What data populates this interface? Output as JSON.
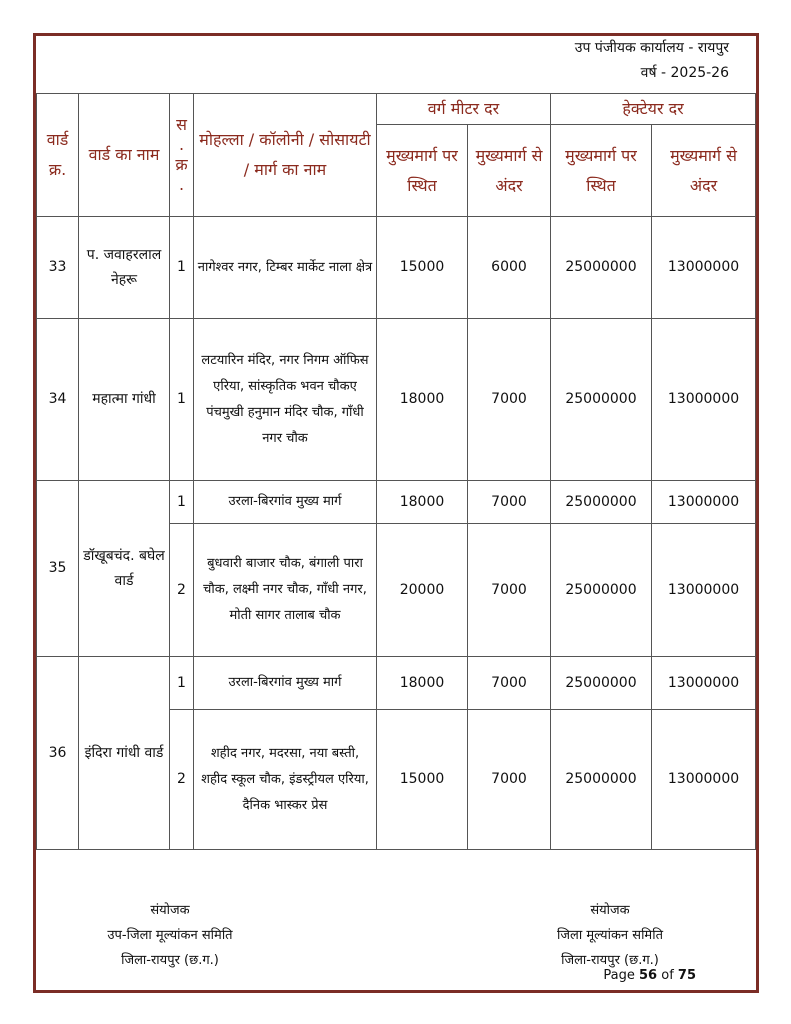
{
  "header": {
    "office": "उप पंजीयक कार्यालय - रायपुर",
    "year": "वर्ष - 2025-26"
  },
  "table": {
    "columns": {
      "ward_no": "वार्ड क्र.",
      "ward_name": "वार्ड का नाम",
      "serial": "स . क्र .",
      "locality": "मोहल्ला / कॉलोनी / सोसायटी / मार्ग का नाम",
      "sqm_rate": "वर्ग मीटर दर",
      "hectare_rate": "हेक्टेयर दर",
      "on_main_road": "मुख्यमार्ग पर स्थित",
      "inside_main_road": "मुख्यमार्ग से अंदर"
    },
    "wards": [
      {
        "no": "33",
        "name": "प. जवाहरलाल नेहरू",
        "rows": [
          {
            "sn": "1",
            "locality": "नागेश्वर नगर, टिम्बर मार्केट नाला क्षेत्र",
            "sqm_on": "15000",
            "sqm_in": "6000",
            "ha_on": "25000000",
            "ha_in": "13000000"
          }
        ]
      },
      {
        "no": "34",
        "name": "महात्मा गांधी",
        "rows": [
          {
            "sn": "1",
            "locality": "लटयारिन मंदिर, नगर निगम ऑफिस एरिया, सांस्कृतिक भवन चौकए पंचमुखी हनुमान मंदिर चौक, गाँधी नगर चौक",
            "sqm_on": "18000",
            "sqm_in": "7000",
            "ha_on": "25000000",
            "ha_in": "13000000"
          }
        ]
      },
      {
        "no": "35",
        "name": "डॉखूबचंद. बघेल वार्ड",
        "rows": [
          {
            "sn": "1",
            "locality": "उरला-बिरगांव मुख्य मार्ग",
            "sqm_on": "18000",
            "sqm_in": "7000",
            "ha_on": "25000000",
            "ha_in": "13000000"
          },
          {
            "sn": "2",
            "locality": "बुधवारी बाजार चौक, बंगाली पारा चौक, लक्ष्मी नगर चौक, गाँधी नगर, मोती सागर तालाब चौक",
            "sqm_on": "20000",
            "sqm_in": "7000",
            "ha_on": "25000000",
            "ha_in": "13000000"
          }
        ]
      },
      {
        "no": "36",
        "name": "इंदिरा गांधी वार्ड",
        "rows": [
          {
            "sn": "1",
            "locality": "उरला-बिरगांव मुख्य मार्ग",
            "sqm_on": "18000",
            "sqm_in": "7000",
            "ha_on": "25000000",
            "ha_in": "13000000"
          },
          {
            "sn": "2",
            "locality": "शहीद नगर, मदरसा, नया बस्ती, शहीद स्कूल चौक, इंडस्ट्रीयल एरिया, दैनिक भास्कर प्रेस",
            "sqm_on": "15000",
            "sqm_in": "7000",
            "ha_on": "25000000",
            "ha_in": "13000000"
          }
        ]
      }
    ]
  },
  "footer": {
    "left": {
      "l1": "संयोजक",
      "l2": "उप-जिला मूल्यांकन समिति",
      "l3": "जिला-रायपुर (छ.ग.)"
    },
    "right": {
      "l1": "संयोजक",
      "l2": "जिला मूल्यांकन समिति",
      "l3": "जिला-रायपुर (छ.ग.)"
    },
    "page": {
      "prefix": "Page",
      "current": "56",
      "of": "of",
      "total": "75"
    }
  }
}
